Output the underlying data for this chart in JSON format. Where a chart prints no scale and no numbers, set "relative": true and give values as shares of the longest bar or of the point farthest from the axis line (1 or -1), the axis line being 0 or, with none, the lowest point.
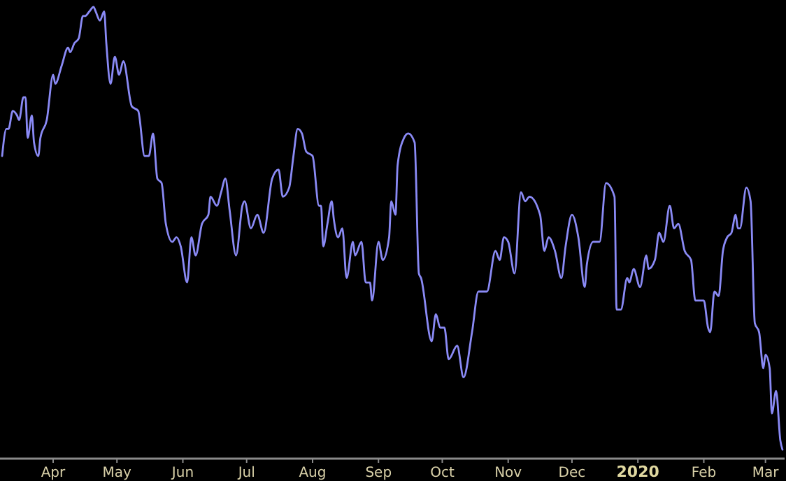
{
  "chart_data": {
    "type": "line",
    "relative": true,
    "xlim": [
      "2019-03-07",
      "2020-03-10"
    ],
    "xticks": [
      {
        "value": "2019-04-01",
        "label": "Apr"
      },
      {
        "value": "2019-05-01",
        "label": "May"
      },
      {
        "value": "2019-06-01",
        "label": "Jun"
      },
      {
        "value": "2019-07-01",
        "label": "Jul"
      },
      {
        "value": "2019-08-01",
        "label": "Aug"
      },
      {
        "value": "2019-09-01",
        "label": "Sep"
      },
      {
        "value": "2019-10-01",
        "label": "Oct"
      },
      {
        "value": "2019-11-01",
        "label": "Nov"
      },
      {
        "value": "2019-12-01",
        "label": "Dec"
      },
      {
        "value": "2020-01-01",
        "label": "2020"
      },
      {
        "value": "2020-02-01",
        "label": "Feb"
      },
      {
        "value": "2020-03-01",
        "label": "Mar"
      }
    ],
    "x": [
      "2019-03-08",
      "2019-03-10",
      "2019-03-11",
      "2019-03-13",
      "2019-03-15",
      "2019-03-16",
      "2019-03-18",
      "2019-03-19",
      "2019-03-20",
      "2019-03-22",
      "2019-03-23",
      "2019-03-25",
      "2019-03-26",
      "2019-03-29",
      "2019-04-01",
      "2019-04-02",
      "2019-04-05",
      "2019-04-08",
      "2019-04-09",
      "2019-04-11",
      "2019-04-13",
      "2019-04-15",
      "2019-04-16",
      "2019-04-18",
      "2019-04-20",
      "2019-04-21",
      "2019-04-23",
      "2019-04-25",
      "2019-04-26",
      "2019-04-28",
      "2019-04-30",
      "2019-05-02",
      "2019-05-04",
      "2019-05-08",
      "2019-05-11",
      "2019-05-14",
      "2019-05-16",
      "2019-05-18",
      "2019-05-20",
      "2019-05-22",
      "2019-05-24",
      "2019-05-27",
      "2019-05-29",
      "2019-05-31",
      "2019-06-03",
      "2019-06-05",
      "2019-06-07",
      "2019-06-10",
      "2019-06-13",
      "2019-06-14",
      "2019-06-17",
      "2019-06-19",
      "2019-06-21",
      "2019-06-23",
      "2019-06-26",
      "2019-06-29",
      "2019-06-30",
      "2019-07-03",
      "2019-07-06",
      "2019-07-09",
      "2019-07-13",
      "2019-07-16",
      "2019-07-18",
      "2019-07-21",
      "2019-07-23",
      "2019-07-25",
      "2019-07-27",
      "2019-07-29",
      "2019-08-01",
      "2019-08-04",
      "2019-08-05",
      "2019-08-06",
      "2019-08-08",
      "2019-08-10",
      "2019-08-11",
      "2019-08-13",
      "2019-08-15",
      "2019-08-17",
      "2019-08-20",
      "2019-08-21",
      "2019-08-24",
      "2019-08-26",
      "2019-08-28",
      "2019-08-29",
      "2019-09-01",
      "2019-09-03",
      "2019-09-06",
      "2019-09-07",
      "2019-09-09",
      "2019-09-10",
      "2019-09-13",
      "2019-09-15",
      "2019-09-18",
      "2019-09-20",
      "2019-09-21",
      "2019-09-26",
      "2019-09-28",
      "2019-09-30",
      "2019-10-02",
      "2019-10-04",
      "2019-10-08",
      "2019-10-11",
      "2019-10-15",
      "2019-10-18",
      "2019-10-22",
      "2019-10-26",
      "2019-10-28",
      "2019-10-30",
      "2019-11-01",
      "2019-11-04",
      "2019-11-07",
      "2019-11-09",
      "2019-11-11",
      "2019-11-16",
      "2019-11-18",
      "2019-11-20",
      "2019-11-23",
      "2019-11-26",
      "2019-11-28",
      "2019-12-01",
      "2019-12-04",
      "2019-12-07",
      "2019-12-08",
      "2019-12-11",
      "2019-12-14",
      "2019-12-17",
      "2019-12-21",
      "2019-12-22",
      "2019-12-24",
      "2019-12-27",
      "2019-12-28",
      "2019-12-30",
      "2020-01-02",
      "2020-01-05",
      "2020-01-06",
      "2020-01-09",
      "2020-01-11",
      "2020-01-13",
      "2020-01-16",
      "2020-01-18",
      "2020-01-20",
      "2020-01-23",
      "2020-01-26",
      "2020-01-28",
      "2020-02-01",
      "2020-02-03",
      "2020-02-04",
      "2020-02-06",
      "2020-02-08",
      "2020-02-10",
      "2020-02-12",
      "2020-02-14",
      "2020-02-16",
      "2020-02-17",
      "2020-02-18",
      "2020-02-21",
      "2020-02-23",
      "2020-02-25",
      "2020-02-27",
      "2020-02-29",
      "2020-03-01",
      "2020-03-03",
      "2020-03-04",
      "2020-03-06",
      "2020-03-08",
      "2020-03-09"
    ],
    "series": [
      {
        "color": "#8a8af5",
        "values": [
          0.67,
          0.73,
          0.73,
          0.77,
          0.76,
          0.75,
          0.8,
          0.8,
          0.71,
          0.76,
          0.7,
          0.67,
          0.71,
          0.75,
          0.85,
          0.83,
          0.87,
          0.91,
          0.9,
          0.92,
          0.93,
          0.98,
          0.98,
          0.99,
          1.0,
          0.99,
          0.97,
          0.99,
          0.92,
          0.83,
          0.89,
          0.85,
          0.88,
          0.78,
          0.77,
          0.67,
          0.67,
          0.72,
          0.62,
          0.61,
          0.52,
          0.48,
          0.49,
          0.47,
          0.39,
          0.49,
          0.45,
          0.52,
          0.54,
          0.58,
          0.56,
          0.59,
          0.62,
          0.55,
          0.45,
          0.56,
          0.57,
          0.51,
          0.54,
          0.5,
          0.62,
          0.64,
          0.58,
          0.6,
          0.67,
          0.73,
          0.72,
          0.68,
          0.67,
          0.56,
          0.56,
          0.47,
          0.52,
          0.57,
          0.53,
          0.49,
          0.51,
          0.4,
          0.48,
          0.45,
          0.48,
          0.39,
          0.39,
          0.35,
          0.48,
          0.44,
          0.49,
          0.57,
          0.54,
          0.65,
          0.71,
          0.72,
          0.7,
          0.41,
          0.4,
          0.26,
          0.32,
          0.29,
          0.29,
          0.22,
          0.25,
          0.18,
          0.28,
          0.37,
          0.37,
          0.46,
          0.44,
          0.49,
          0.48,
          0.41,
          0.59,
          0.57,
          0.58,
          0.54,
          0.46,
          0.49,
          0.46,
          0.4,
          0.47,
          0.54,
          0.49,
          0.38,
          0.43,
          0.48,
          0.48,
          0.61,
          0.58,
          0.33,
          0.33,
          0.4,
          0.39,
          0.42,
          0.38,
          0.45,
          0.42,
          0.44,
          0.5,
          0.48,
          0.56,
          0.51,
          0.52,
          0.46,
          0.44,
          0.35,
          0.35,
          0.29,
          0.28,
          0.37,
          0.36,
          0.46,
          0.49,
          0.5,
          0.54,
          0.51,
          0.51,
          0.6,
          0.57,
          0.3,
          0.28,
          0.2,
          0.23,
          0.2,
          0.1,
          0.15,
          0.04,
          0.02
        ]
      }
    ]
  }
}
